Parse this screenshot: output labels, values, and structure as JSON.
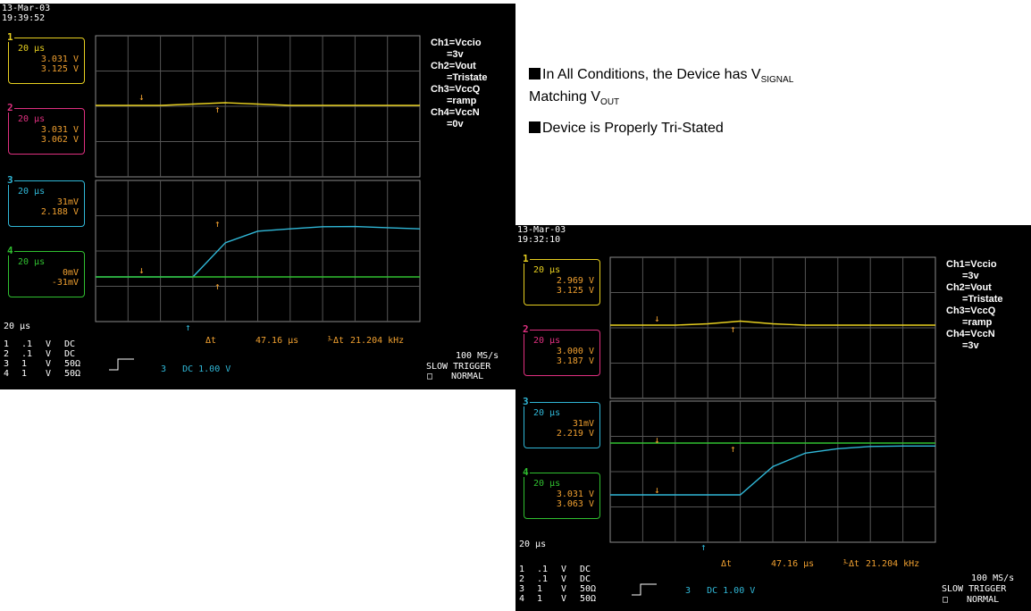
{
  "bullets": [
    {
      "pre": "In All Conditions, the Device has V",
      "sub1": "SIGNAL",
      "mid": "Matching V",
      "sub2": "OUT"
    },
    {
      "text": "Device is Properly Tri-Stated"
    }
  ],
  "scopes": [
    {
      "date": "13-Mar-03",
      "time": "19:39:52",
      "channels": [
        {
          "num": "1",
          "timebase": "20 μs",
          "v1": "3.031 V",
          "v2": "3.125 V",
          "color": "#e8d020"
        },
        {
          "num": "2",
          "timebase": "20 μs",
          "v1": "3.031 V",
          "v2": "3.062 V",
          "color": "#e03080"
        },
        {
          "num": "3",
          "timebase": "20 μs",
          "v1": "31mV",
          "v2": "2.188 V",
          "color": "#30b8d8"
        },
        {
          "num": "4",
          "timebase": "20 μs",
          "v1": "0mV",
          "v2": "-31mV",
          "color": "#30c030"
        }
      ],
      "labels": [
        "Ch1=Vccio",
        "=3v",
        "Ch2=Vout",
        "=Tristate",
        "Ch3=VccQ",
        "=ramp",
        "Ch4=VccN",
        "=0v"
      ],
      "timebase": "20 μs",
      "settings": [
        {
          "ch": "1",
          "scale": ".1",
          "unit": "V",
          "coupling": "DC"
        },
        {
          "ch": "2",
          "scale": ".1",
          "unit": "V",
          "coupling": "DC"
        },
        {
          "ch": "3",
          "scale": "1",
          "unit": "V",
          "coupling": "50Ω"
        },
        {
          "ch": "4",
          "scale": "1",
          "unit": "V",
          "coupling": "50Ω"
        }
      ],
      "trigger": "3   DC 1.00 V",
      "delta_t_label": "Δt",
      "delta_t": "47.16 μs",
      "freq": "21.204 kHz",
      "rate": "100 MS/s",
      "trig_mode": "SLOW TRIGGER",
      "trig_state": "NORMAL"
    },
    {
      "date": "13-Mar-03",
      "time": "19:32:10",
      "channels": [
        {
          "num": "1",
          "timebase": "20 μs",
          "v1": "2.969 V",
          "v2": "3.125 V",
          "color": "#e8d020"
        },
        {
          "num": "2",
          "timebase": "20 μs",
          "v1": "3.000 V",
          "v2": "3.187 V",
          "color": "#e03080"
        },
        {
          "num": "3",
          "timebase": "20 μs",
          "v1": "31mV",
          "v2": "2.219 V",
          "color": "#30b8d8"
        },
        {
          "num": "4",
          "timebase": "20 μs",
          "v1": "3.031 V",
          "v2": "3.063 V",
          "color": "#30c030"
        }
      ],
      "labels": [
        "Ch1=Vccio",
        "=3v",
        "Ch2=Vout",
        "=Tristate",
        "Ch3=VccQ",
        "=ramp",
        "Ch4=VccN",
        "=3v"
      ],
      "timebase": "20 μs",
      "settings": [
        {
          "ch": "1",
          "scale": ".1",
          "unit": "V",
          "coupling": "DC"
        },
        {
          "ch": "2",
          "scale": ".1",
          "unit": "V",
          "coupling": "DC"
        },
        {
          "ch": "3",
          "scale": "1",
          "unit": "V",
          "coupling": "50Ω"
        },
        {
          "ch": "4",
          "scale": "1",
          "unit": "V",
          "coupling": "50Ω"
        }
      ],
      "trigger": "3   DC 1.00 V",
      "delta_t_label": "Δt",
      "delta_t": "47.16 μs",
      "freq": "21.204 kHz",
      "rate": "100 MS/s",
      "trig_mode": "SLOW TRIGGER",
      "trig_state": "NORMAL"
    }
  ],
  "chart_data": [
    {
      "type": "line",
      "title": "",
      "x": [
        0,
        10,
        20,
        30,
        40,
        50,
        60,
        70,
        80,
        90,
        100
      ],
      "series": [
        {
          "name": "Ch1",
          "values": [
            3.03,
            3.03,
            3.03,
            3.035,
            3.04,
            3.035,
            3.03,
            3.03,
            3.03,
            3.03,
            3.03
          ]
        },
        {
          "name": "Ch3",
          "values": [
            0.03,
            0.03,
            0.03,
            0.03,
            1.5,
            2.0,
            2.1,
            2.19,
            2.2,
            2.15,
            2.1
          ]
        },
        {
          "name": "Ch4",
          "values": [
            0,
            0,
            0,
            0,
            0,
            0,
            0,
            0,
            0,
            0,
            0
          ]
        }
      ]
    },
    {
      "type": "line",
      "title": "",
      "x": [
        0,
        10,
        20,
        30,
        40,
        50,
        60,
        70,
        80,
        90,
        100
      ],
      "series": [
        {
          "name": "Ch1",
          "values": [
            2.97,
            2.97,
            2.97,
            2.975,
            2.985,
            2.975,
            2.97,
            2.97,
            2.97,
            2.97,
            2.97
          ]
        },
        {
          "name": "Ch3",
          "values": [
            0.03,
            0.03,
            0.03,
            0.03,
            0.03,
            1.3,
            1.9,
            2.1,
            2.2,
            2.22,
            2.22
          ]
        },
        {
          "name": "Ch4",
          "values": [
            3.03,
            3.03,
            3.03,
            3.03,
            3.03,
            3.03,
            3.03,
            3.03,
            3.03,
            3.03,
            3.03
          ]
        }
      ]
    }
  ]
}
